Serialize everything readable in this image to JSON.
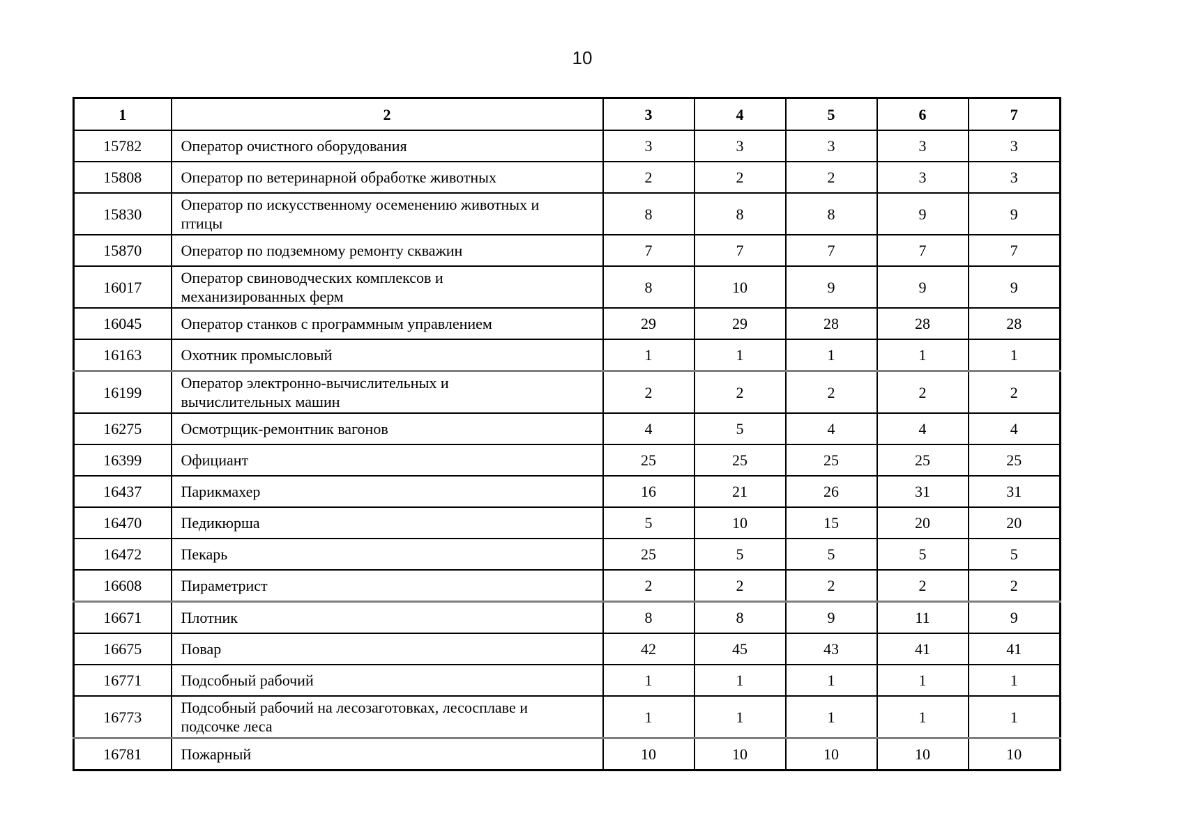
{
  "page": {
    "number": "10"
  },
  "table": {
    "headers": [
      "1",
      "2",
      "3",
      "4",
      "5",
      "6",
      "7"
    ],
    "rows": [
      {
        "code": "15782",
        "name": "Оператор очистного оборудования",
        "values": [
          "3",
          "3",
          "3",
          "3",
          "3"
        ]
      },
      {
        "code": "15808",
        "name": "Оператор по ветеринарной обработке животных",
        "values": [
          "2",
          "2",
          "2",
          "3",
          "3"
        ]
      },
      {
        "code": "15830",
        "name": [
          "Оператор по искусственному осеменению животных и",
          "птицы"
        ],
        "values": [
          "8",
          "8",
          "8",
          "9",
          "9"
        ]
      },
      {
        "code": "15870",
        "name": "Оператор по подземному ремонту скважин",
        "values": [
          "7",
          "7",
          "7",
          "7",
          "7"
        ]
      },
      {
        "code": "16017",
        "name": [
          "Оператор свиноводческих комплексов и",
          "механизированных ферм"
        ],
        "values": [
          "8",
          "10",
          "9",
          "9",
          "9"
        ]
      },
      {
        "code": "16045",
        "name": "Оператор станков с программным управлением",
        "values": [
          "29",
          "29",
          "28",
          "28",
          "28"
        ]
      },
      {
        "code": "16163",
        "name": "Охотник промысловый",
        "values": [
          "1",
          "1",
          "1",
          "1",
          "1"
        ]
      },
      {
        "code": "16199",
        "name": [
          "Оператор электронно-вычислительных и",
          "вычислительных машин"
        ],
        "values": [
          "2",
          "2",
          "2",
          "2",
          "2"
        ]
      },
      {
        "code": "16275",
        "name": "Осмотрщик-ремонтник вагонов",
        "values": [
          "4",
          "5",
          "4",
          "4",
          "4"
        ]
      },
      {
        "code": "16399",
        "name": "Официант",
        "values": [
          "25",
          "25",
          "25",
          "25",
          "25"
        ]
      },
      {
        "code": "16437",
        "name": "Парикмахер",
        "values": [
          "16",
          "21",
          "26",
          "31",
          "31"
        ]
      },
      {
        "code": "16470",
        "name": "Педикюрша",
        "values": [
          "5",
          "10",
          "15",
          "20",
          "20"
        ]
      },
      {
        "code": "16472",
        "name": "Пекарь",
        "values": [
          "25",
          "5",
          "5",
          "5",
          "5"
        ]
      },
      {
        "code": "16608",
        "name": "Пираметрист",
        "values": [
          "2",
          "2",
          "2",
          "2",
          "2"
        ]
      },
      {
        "code": "16671",
        "name": "Плотник",
        "values": [
          "8",
          "8",
          "9",
          "11",
          "9"
        ]
      },
      {
        "code": "16675",
        "name": "Повар",
        "values": [
          "42",
          "45",
          "43",
          "41",
          "41"
        ]
      },
      {
        "code": "16771",
        "name": "Подсобный рабочий",
        "values": [
          "1",
          "1",
          "1",
          "1",
          "1"
        ]
      },
      {
        "code": "16773",
        "name": [
          "Подсобный рабочий на лесозаготовках, лесосплаве и",
          "подсочке леса"
        ],
        "values": [
          "1",
          "1",
          "1",
          "1",
          "1"
        ]
      },
      {
        "code": "16781",
        "name": "Пожарный",
        "values": [
          "10",
          "10",
          "10",
          "10",
          "10"
        ]
      }
    ]
  }
}
